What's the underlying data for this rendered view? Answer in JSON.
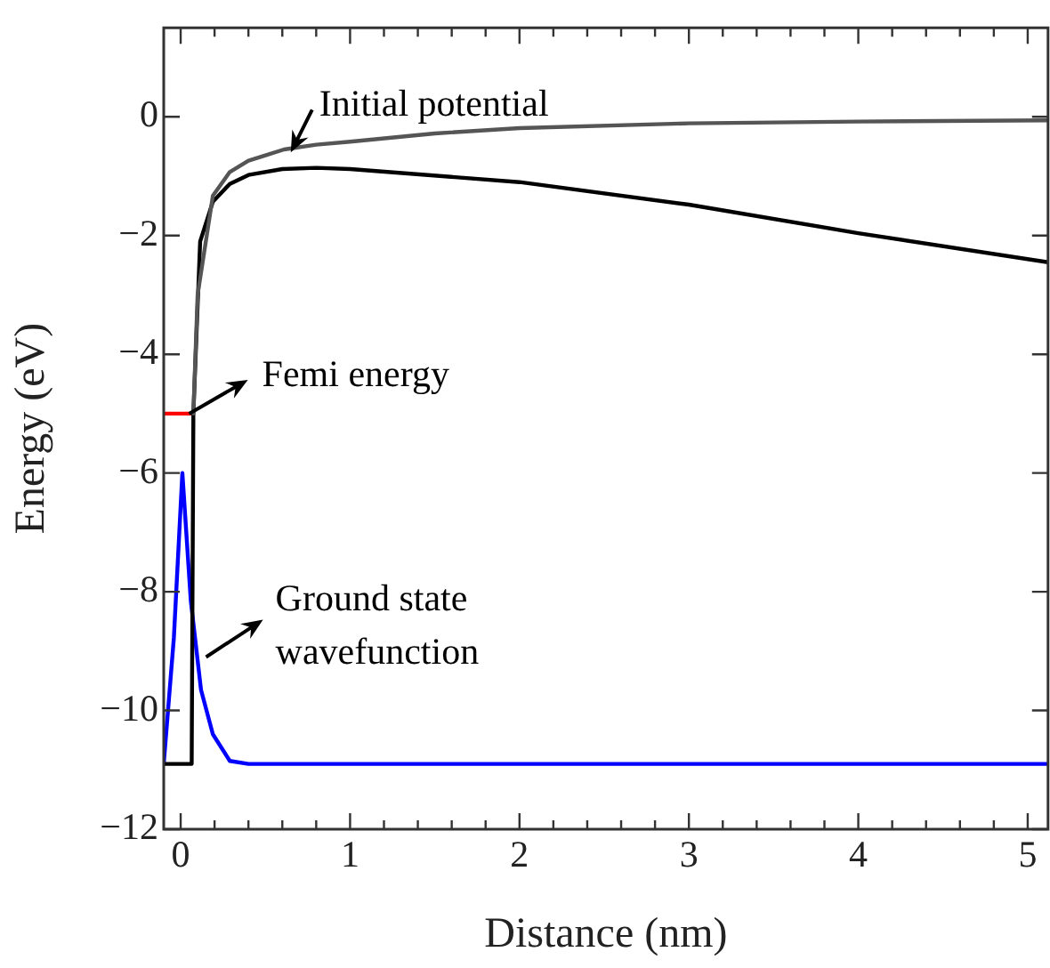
{
  "chart_data": {
    "type": "line",
    "xlabel": "Distance (nm)",
    "ylabel": "Energy (eV)",
    "xlim": [
      -0.1,
      5.12
    ],
    "ylim": [
      -12,
      1.5
    ],
    "xticks": [
      0,
      {
        "value": 0.2,
        "label": null
      },
      {
        "value": 0.4,
        "label": null
      },
      {
        "value": 0.6,
        "label": null
      },
      {
        "value": 0.8,
        "label": null
      },
      1,
      {
        "value": 1.2,
        "label": null
      },
      {
        "value": 1.4,
        "label": null
      },
      {
        "value": 1.6,
        "label": null
      },
      {
        "value": 1.8,
        "label": null
      },
      2,
      {
        "value": 2.2,
        "label": null
      },
      {
        "value": 2.4,
        "label": null
      },
      {
        "value": 2.6,
        "label": null
      },
      {
        "value": 2.8,
        "label": null
      },
      3,
      {
        "value": 3.2,
        "label": null
      },
      {
        "value": 3.4,
        "label": null
      },
      {
        "value": 3.6,
        "label": null
      },
      {
        "value": 3.8,
        "label": null
      },
      4,
      {
        "value": 4.2,
        "label": null
      },
      {
        "value": 4.4,
        "label": null
      },
      {
        "value": 4.6,
        "label": null
      },
      {
        "value": 4.8,
        "label": null
      },
      5
    ],
    "yticks": [
      -12,
      -10,
      -8,
      -6,
      -4,
      -2,
      0
    ],
    "grid": false,
    "marker": "none",
    "line_style": "solid",
    "series": [
      {
        "color": "#555555",
        "x": [
          0.075,
          0.1,
          0.19,
          0.29,
          0.4,
          0.5,
          0.61,
          0.8,
          1,
          1.5,
          2,
          3,
          4,
          5.12
        ],
        "values": [
          -5,
          -3,
          -1.33,
          -0.93,
          -0.74,
          -0.65,
          -0.55,
          -0.47,
          -0.42,
          -0.28,
          -0.19,
          -0.11,
          -0.08,
          -0.06
        ]
      },
      {
        "color": "#000000",
        "x": [
          -0.1,
          0.065,
          0.075,
          0.115,
          0.19,
          0.29,
          0.4,
          0.6,
          0.8,
          1,
          2,
          3,
          4,
          5.12
        ],
        "values": [
          -10.9,
          -10.9,
          -5,
          -2.1,
          -1.43,
          -1.13,
          -0.98,
          -0.88,
          -0.86,
          -0.88,
          -1.1,
          -1.48,
          -1.96,
          -2.45
        ]
      },
      {
        "color": "#ff0000",
        "x": [
          -0.1,
          0.07
        ],
        "values": [
          -5,
          -5
        ]
      },
      {
        "color": "#0000ff",
        "x": [
          -0.1,
          -0.04,
          0.01,
          0.06,
          0.12,
          0.19,
          0.29,
          0.4,
          1,
          2,
          3,
          4,
          5.12
        ],
        "values": [
          -10.9,
          -8.77,
          -6,
          -8.16,
          -9.65,
          -10.4,
          -10.85,
          -10.9,
          -10.9,
          -10.9,
          -10.9,
          -10.9,
          -10.9
        ]
      }
    ],
    "annotations": [
      {
        "text": "Initial potential",
        "x": 0.65,
        "y": -0.6
      },
      {
        "text": "Femi energy",
        "x": 0.05,
        "y": -5
      },
      {
        "text": "Ground state\nwavefunction",
        "x": 0.15,
        "y": -9.1
      }
    ]
  }
}
